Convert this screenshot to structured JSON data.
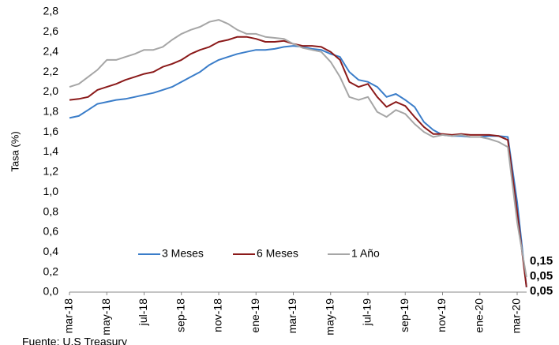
{
  "chart_data": {
    "type": "line",
    "y_label": "Tasa (%)",
    "source": "Fuente: U.S Treasury",
    "categories": [
      "mar-18",
      null,
      null,
      null,
      "may-18",
      null,
      null,
      null,
      "jul-18",
      null,
      null,
      null,
      "sep-18",
      null,
      null,
      null,
      "nov-18",
      null,
      null,
      null,
      "ene-19",
      null,
      null,
      null,
      "mar-19",
      null,
      null,
      null,
      "may-19",
      null,
      null,
      null,
      "jul-19",
      null,
      null,
      null,
      "sep-19",
      null,
      null,
      null,
      "nov-19",
      null,
      null,
      null,
      "ene-20",
      null,
      null,
      null,
      "mar-20",
      null
    ],
    "ylim": [
      0,
      2.8
    ],
    "yticks": [
      {
        "value": 0,
        "label": "0,0"
      },
      {
        "value": 0.2,
        "label": "0,2"
      },
      {
        "value": 0.4,
        "label": "0,4"
      },
      {
        "value": 0.6,
        "label": "0,6"
      },
      {
        "value": 0.8,
        "label": "0,8"
      },
      {
        "value": 1,
        "label": "1,0"
      },
      {
        "value": 1.2,
        "label": "1,2"
      },
      {
        "value": 1.4,
        "label": "1,4"
      },
      {
        "value": 1.6,
        "label": "1,6"
      },
      {
        "value": 1.8,
        "label": "1,8"
      },
      {
        "value": 2,
        "label": "2,0"
      },
      {
        "value": 2.2,
        "label": "2,2"
      },
      {
        "value": 2.4,
        "label": "2,4"
      },
      {
        "value": 2.6,
        "label": "2,6"
      },
      {
        "value": 2.8,
        "label": "2,8"
      }
    ],
    "grid": false,
    "series": [
      {
        "name": "3 Meses",
        "color": "#3a7dc9",
        "values": [
          1.74,
          1.76,
          1.82,
          1.88,
          1.9,
          1.92,
          1.93,
          1.95,
          1.97,
          1.99,
          2.02,
          2.05,
          2.1,
          2.15,
          2.2,
          2.27,
          2.32,
          2.35,
          2.38,
          2.4,
          2.42,
          2.42,
          2.43,
          2.45,
          2.46,
          2.45,
          2.43,
          2.42,
          2.38,
          2.35,
          2.2,
          2.12,
          2.1,
          2.05,
          1.95,
          1.98,
          1.92,
          1.85,
          1.7,
          1.62,
          1.57,
          1.56,
          1.56,
          1.55,
          1.55,
          1.56,
          1.56,
          1.55,
          0.9,
          0.05
        ],
        "value_labels": [
          null,
          null,
          null,
          null,
          null,
          null,
          null,
          null,
          null,
          null,
          null,
          null,
          null,
          null,
          null,
          null,
          null,
          null,
          null,
          null,
          null,
          null,
          null,
          null,
          null,
          null,
          null,
          null,
          null,
          null,
          null,
          null,
          null,
          null,
          null,
          null,
          null,
          null,
          null,
          null,
          null,
          null,
          null,
          null,
          null,
          null,
          null,
          null,
          null,
          "0,05"
        ]
      },
      {
        "name": "6 Meses",
        "color": "#8b1a1a",
        "values": [
          1.92,
          1.93,
          1.95,
          2.02,
          2.05,
          2.08,
          2.12,
          2.15,
          2.18,
          2.2,
          2.25,
          2.28,
          2.32,
          2.38,
          2.42,
          2.45,
          2.5,
          2.52,
          2.55,
          2.55,
          2.53,
          2.5,
          2.5,
          2.51,
          2.48,
          2.46,
          2.46,
          2.45,
          2.4,
          2.32,
          2.1,
          2.05,
          2.08,
          1.95,
          1.85,
          1.9,
          1.86,
          1.75,
          1.65,
          1.58,
          1.58,
          1.57,
          1.58,
          1.57,
          1.57,
          1.57,
          1.56,
          1.52,
          0.8,
          0.05
        ],
        "value_labels": [
          null,
          null,
          null,
          null,
          null,
          null,
          null,
          null,
          null,
          null,
          null,
          null,
          null,
          null,
          null,
          null,
          null,
          null,
          null,
          null,
          null,
          null,
          null,
          null,
          null,
          null,
          null,
          null,
          null,
          null,
          null,
          null,
          null,
          null,
          null,
          null,
          null,
          null,
          null,
          null,
          null,
          null,
          null,
          null,
          null,
          null,
          null,
          null,
          null,
          "0,05"
        ]
      },
      {
        "name": "1 Año",
        "color": "#a6a6a6",
        "values": [
          2.05,
          2.08,
          2.15,
          2.22,
          2.32,
          2.32,
          2.35,
          2.38,
          2.42,
          2.42,
          2.45,
          2.52,
          2.58,
          2.62,
          2.65,
          2.7,
          2.72,
          2.68,
          2.62,
          2.58,
          2.58,
          2.55,
          2.54,
          2.53,
          2.48,
          2.44,
          2.42,
          2.4,
          2.3,
          2.15,
          1.95,
          1.92,
          1.95,
          1.8,
          1.75,
          1.82,
          1.78,
          1.68,
          1.6,
          1.55,
          1.57,
          1.56,
          1.57,
          1.55,
          1.55,
          1.53,
          1.5,
          1.45,
          0.7,
          0.15
        ],
        "value_labels": [
          null,
          null,
          null,
          null,
          null,
          null,
          null,
          null,
          null,
          null,
          null,
          null,
          null,
          null,
          null,
          null,
          null,
          null,
          null,
          null,
          null,
          null,
          null,
          null,
          null,
          null,
          null,
          null,
          null,
          null,
          null,
          null,
          null,
          null,
          null,
          null,
          null,
          null,
          null,
          null,
          null,
          null,
          null,
          null,
          null,
          null,
          null,
          null,
          null,
          "0,15"
        ]
      }
    ]
  }
}
